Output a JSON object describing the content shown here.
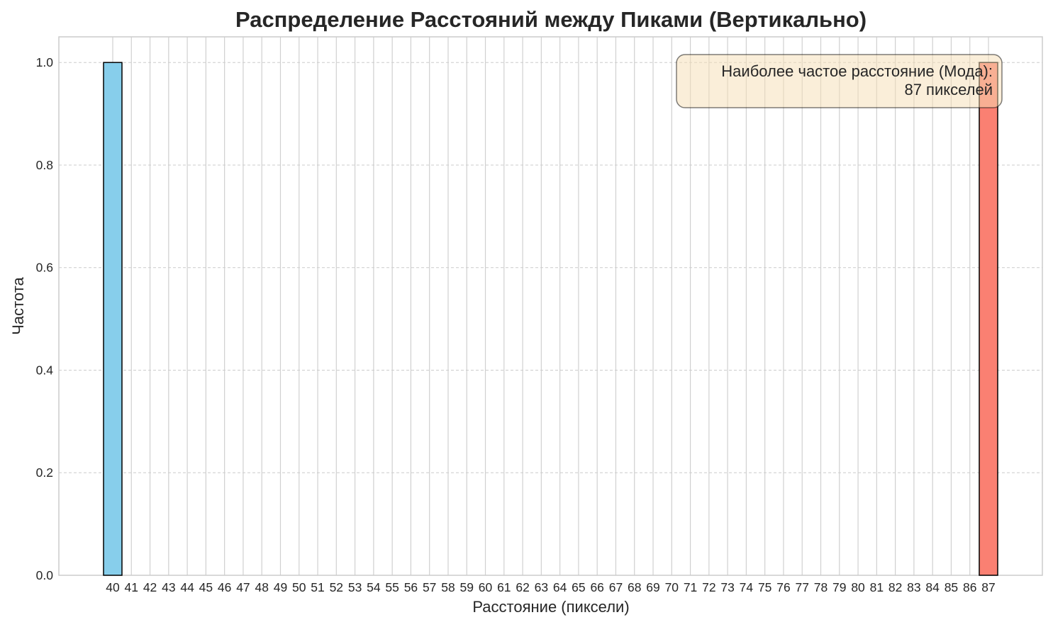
{
  "chart_data": {
    "type": "bar",
    "title": "Распределение Расстояний между Пиками (Вертикально)",
    "xlabel": "Расстояние (пиксели)",
    "ylabel": "Частота",
    "categories": [
      "40",
      "41",
      "42",
      "43",
      "44",
      "45",
      "46",
      "47",
      "48",
      "49",
      "50",
      "51",
      "52",
      "53",
      "54",
      "55",
      "56",
      "57",
      "58",
      "59",
      "60",
      "61",
      "62",
      "63",
      "64",
      "65",
      "66",
      "67",
      "68",
      "69",
      "70",
      "71",
      "72",
      "73",
      "74",
      "75",
      "76",
      "77",
      "78",
      "79",
      "80",
      "81",
      "82",
      "83",
      "84",
      "85",
      "86",
      "87"
    ],
    "values": [
      1,
      0,
      0,
      0,
      0,
      0,
      0,
      0,
      0,
      0,
      0,
      0,
      0,
      0,
      0,
      0,
      0,
      0,
      0,
      0,
      0,
      0,
      0,
      0,
      0,
      0,
      0,
      0,
      0,
      0,
      0,
      0,
      0,
      0,
      0,
      0,
      0,
      0,
      0,
      0,
      0,
      0,
      0,
      0,
      0,
      0,
      0,
      1
    ],
    "bar_colors": {
      "default": "#87ceeb",
      "mode": "#fa8072"
    },
    "mode_category": "87",
    "ylim": [
      0,
      1.05
    ],
    "yticks": [
      "0.0",
      "0.2",
      "0.4",
      "0.6",
      "0.8",
      "1.0"
    ],
    "ytick_values": [
      0,
      0.2,
      0.4,
      0.6,
      0.8,
      1.0
    ],
    "grid": true,
    "annotation": {
      "line1": "Наиболее частое расстояние (Мода):",
      "line2": "87 пикселей",
      "placement": "top-right"
    }
  }
}
